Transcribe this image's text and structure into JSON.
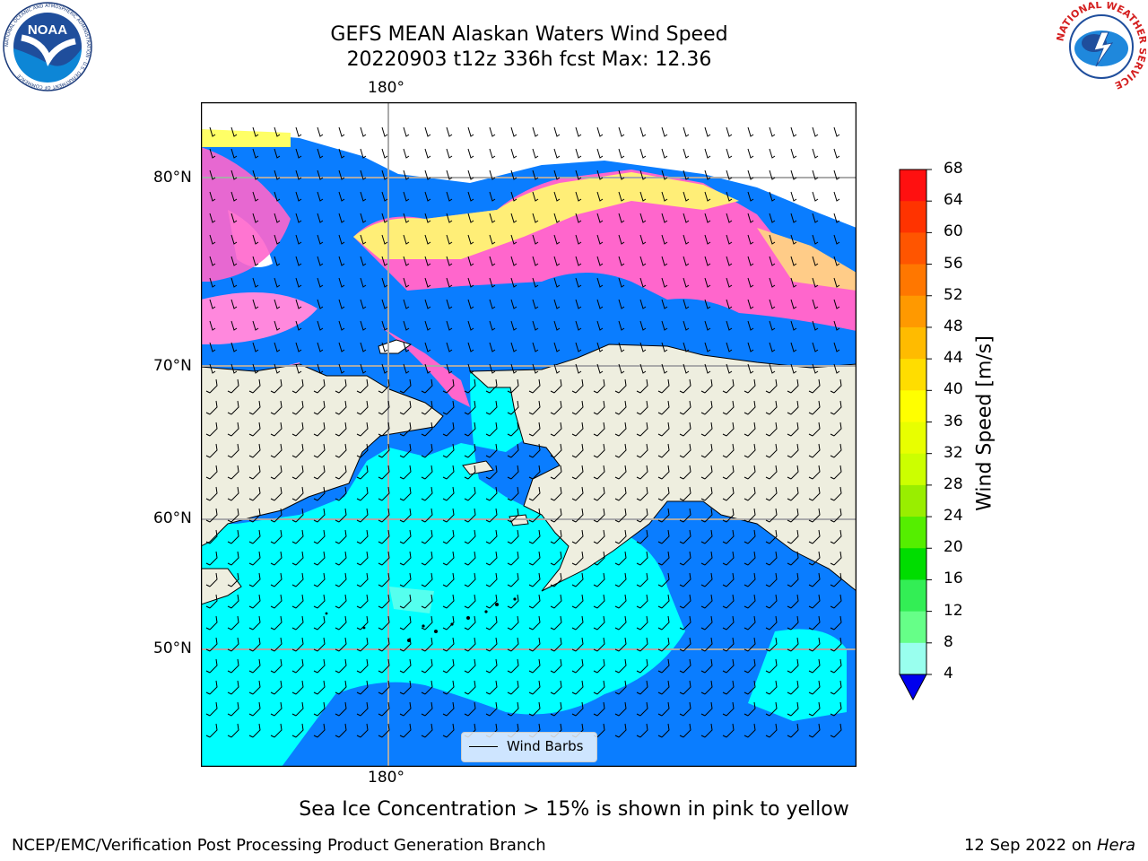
{
  "header": {
    "title_line1": "GEFS MEAN Alaskan Waters Wind Speed",
    "title_line2": "20220903 t12z 336h fcst   Max: 12.36"
  },
  "logos": {
    "left_text": "NOAA",
    "left_ring_text": "NATIONAL OCEANIC AND ATMOSPHERIC ADMINISTRATION · U.S. DEPARTMENT OF COMMERCE",
    "right_ring_text": "NATIONAL WEATHER SERVICE"
  },
  "map": {
    "lon_label_top": "180°",
    "lon_label_bottom": "180°",
    "lat_labels": [
      "80°N",
      "70°N",
      "60°N",
      "50°N"
    ],
    "legend_label": "Wind Barbs",
    "colors": {
      "ocean_low": "#0a7dff",
      "ocean_mid": "#00ffff",
      "land": "#eeeedf",
      "ice_pink": "#ff66cc",
      "ice_yellow": "#ffff33"
    }
  },
  "colorbar": {
    "label": "Wind Speed [m/s]",
    "ticks": [
      "68",
      "64",
      "60",
      "56",
      "52",
      "48",
      "44",
      "40",
      "36",
      "32",
      "28",
      "24",
      "20",
      "16",
      "12",
      "8",
      "4"
    ],
    "colors": [
      "#ff1010",
      "#ff3300",
      "#ff5500",
      "#ff7700",
      "#ff9900",
      "#ffbb00",
      "#ffdd00",
      "#ffff00",
      "#e8ff00",
      "#ccff00",
      "#99ee00",
      "#55ee00",
      "#00dd00",
      "#33ee55",
      "#66ff88",
      "#99ffee",
      "#55ffff",
      "#00ffff",
      "#0a7dff"
    ],
    "under_color": "#0000ee"
  },
  "caption": "Sea Ice Concentration > 15% is shown in pink to yellow",
  "footer": {
    "left": "NCEP/EMC/Verification Post Processing Product Generation Branch",
    "right_date": "12 Sep 2022 on",
    "right_host": "Hera"
  }
}
